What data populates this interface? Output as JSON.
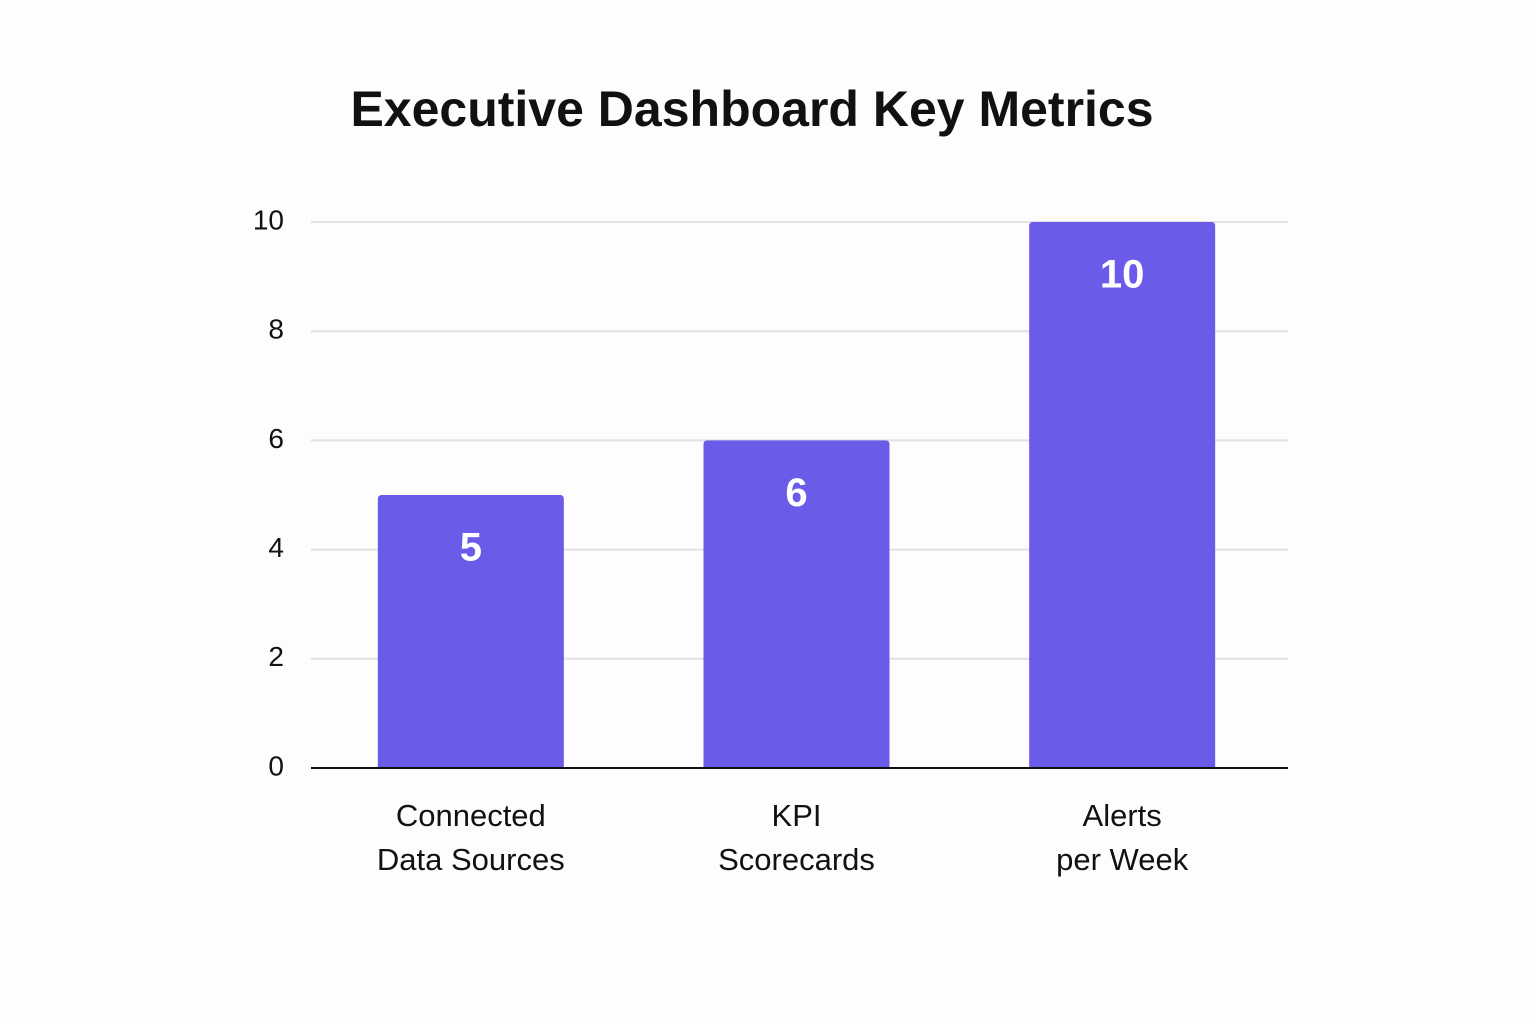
{
  "chart_data": {
    "type": "bar",
    "title": "Executive Dashboard Key Metrics",
    "categories": [
      "Connected\nData Sources",
      "KPI\nScorecards",
      "Alerts\nper Week"
    ],
    "values": [
      5,
      6,
      10
    ],
    "color": "#6b5be9",
    "ylim": [
      0,
      10
    ],
    "yticks": [
      0,
      2,
      4,
      6,
      8,
      10
    ],
    "grid": true
  }
}
